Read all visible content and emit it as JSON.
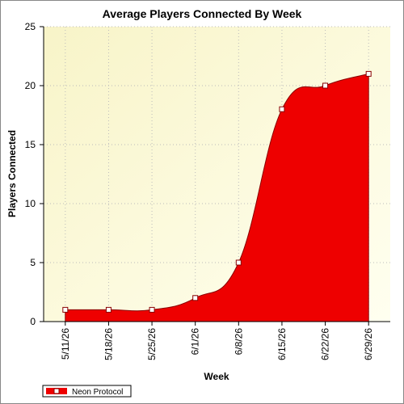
{
  "chart_data": {
    "type": "area",
    "title": "Average Players Connected By Week",
    "x_label": "Week",
    "y_label": "Players Connected",
    "categories": [
      "5/11/26",
      "5/18/26",
      "5/25/26",
      "6/1/26",
      "6/8/26",
      "6/15/26",
      "6/22/26",
      "6/29/26"
    ],
    "series": [
      {
        "name": "Neon Protocol",
        "color": "#ee0000",
        "values": [
          1,
          1,
          1,
          2,
          5,
          18,
          20,
          21
        ]
      }
    ],
    "ylim": [
      0,
      25
    ],
    "yticks": [
      0,
      5,
      10,
      15,
      20,
      25
    ],
    "grid": true,
    "legend": "bottom-left"
  }
}
